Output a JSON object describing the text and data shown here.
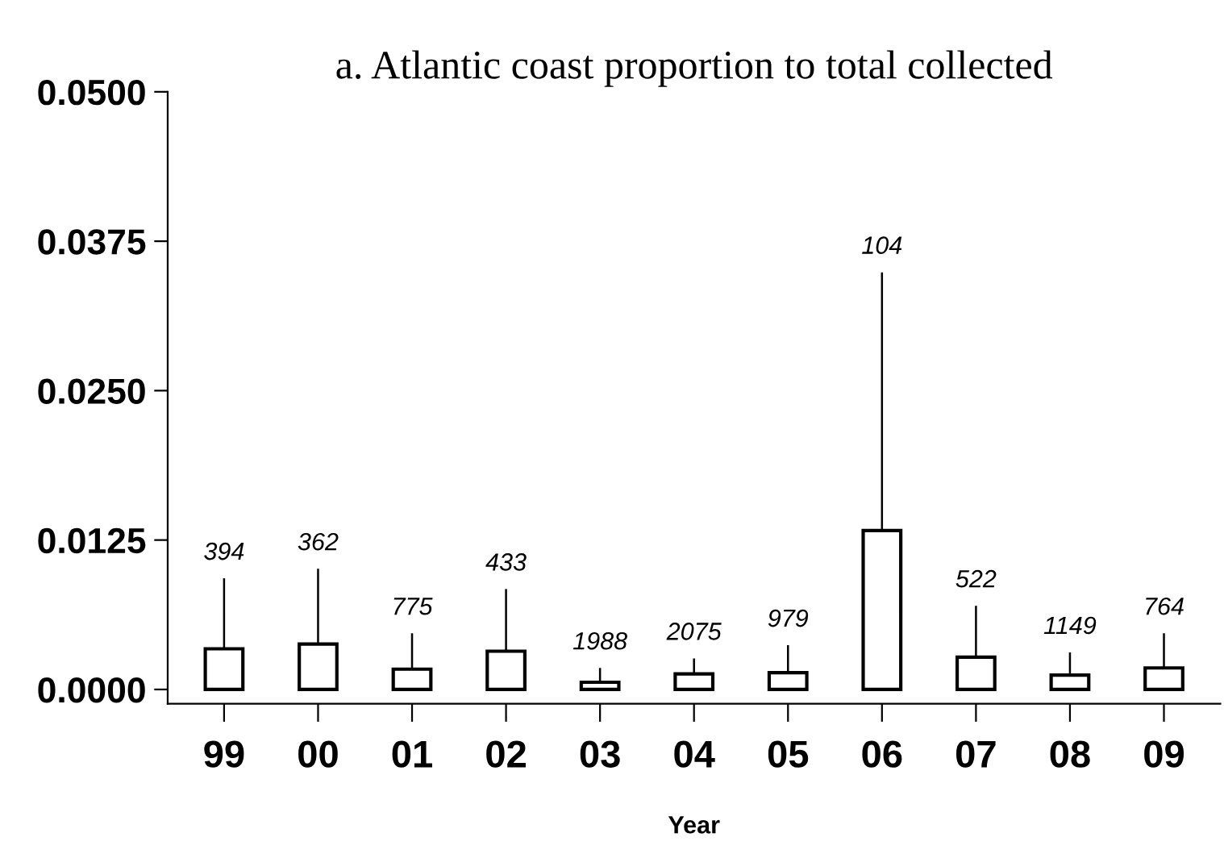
{
  "chart_data": {
    "type": "bar",
    "title": "a. Atlantic coast proportion to total collected",
    "xlabel": "Year",
    "categories": [
      "99",
      "00",
      "01",
      "02",
      "03",
      "04",
      "05",
      "06",
      "07",
      "08",
      "09"
    ],
    "values": [
      0.0034,
      0.0038,
      0.0017,
      0.0032,
      0.0006,
      0.0013,
      0.0014,
      0.0133,
      0.0027,
      0.0012,
      0.0018
    ],
    "errors": [
      [
        0.0034,
        0.0093
      ],
      [
        0.0038,
        0.0101
      ],
      [
        0.0017,
        0.0047
      ],
      [
        0.0032,
        0.0084
      ],
      [
        0.0006,
        0.0018
      ],
      [
        0.0013,
        0.0026
      ],
      [
        0.0014,
        0.0037
      ],
      [
        0.0133,
        0.0349
      ],
      [
        0.0027,
        0.007
      ],
      [
        0.0012,
        0.0031
      ],
      [
        0.0018,
        0.0047
      ]
    ],
    "color": "#ffffff",
    "ylim": [
      -0.0012,
      0.05
    ],
    "yticks": [
      {
        "value": 0,
        "label": "0.0000"
      },
      {
        "value": 0.0125,
        "label": "0.0125"
      },
      {
        "value": 0.025,
        "label": "0.0250"
      },
      {
        "value": 0.0375,
        "label": "0.0375"
      },
      {
        "value": 0.05,
        "label": "0.0500"
      }
    ],
    "grid": false,
    "annotations": [
      {
        "text": "394",
        "x": "99",
        "y": 0.0093
      },
      {
        "text": "362",
        "x": "00",
        "y": 0.0101
      },
      {
        "text": "775",
        "x": "01",
        "y": 0.0047
      },
      {
        "text": "433",
        "x": "02",
        "y": 0.0084
      },
      {
        "text": "1988",
        "x": "03",
        "y": 0.0018
      },
      {
        "text": "2075",
        "x": "04",
        "y": 0.0026
      },
      {
        "text": "979",
        "x": "05",
        "y": 0.0037
      },
      {
        "text": "104",
        "x": "06",
        "y": 0.0349
      },
      {
        "text": "522",
        "x": "07",
        "y": 0.007
      },
      {
        "text": "1149",
        "x": "08",
        "y": 0.0031
      },
      {
        "text": "764",
        "x": "09",
        "y": 0.0047
      }
    ]
  }
}
